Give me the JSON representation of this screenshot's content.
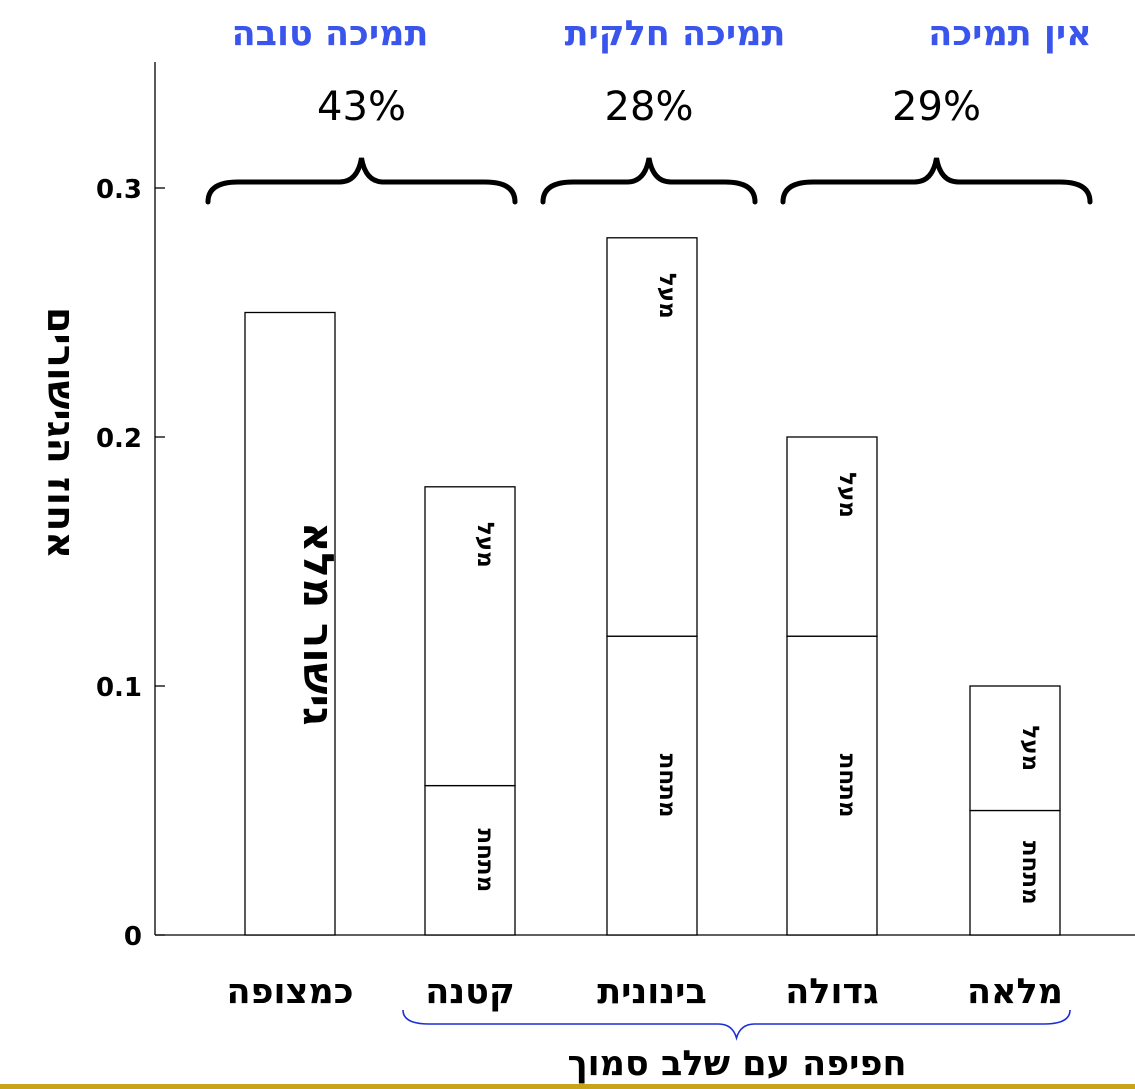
{
  "chart_data": {
    "type": "bar",
    "stacked": true,
    "ylabel": "אחוז הגישורים",
    "xlabel": "חפיפה עם שלב סמוך",
    "ylim": [
      0,
      0.35
    ],
    "yticks": [
      0,
      0.1,
      0.2,
      0.3
    ],
    "ytick_labels": [
      "0",
      "0.1",
      "0.2",
      "0.3"
    ],
    "categories": [
      "כמצופה",
      "קטנה",
      "בינונית",
      "גדולה",
      "מלאה"
    ],
    "series": [
      {
        "name": "מתחת",
        "values": [
          null,
          0.06,
          0.12,
          0.12,
          0.05
        ]
      },
      {
        "name": "מעל",
        "values": [
          null,
          0.12,
          0.16,
          0.08,
          0.05
        ]
      },
      {
        "name": "גישור מלא",
        "values": [
          0.25,
          null,
          null,
          null,
          null
        ]
      }
    ],
    "totals": [
      0.25,
      0.18,
      0.28,
      0.2,
      0.1
    ],
    "groups": [
      {
        "title": "תמיכה טובה",
        "percent": "43%",
        "categories": [
          "כמצופה",
          "קטנה"
        ]
      },
      {
        "title": "תמיכה חלקית",
        "percent": "28%",
        "categories": [
          "בינונית"
        ]
      },
      {
        "title": "אין תמיכה",
        "percent": "29%",
        "categories": [
          "גדולה",
          "מלאה"
        ]
      }
    ]
  },
  "colors": {
    "bar_fill": "#ffffff",
    "ink": "#000000",
    "group_title": "#3a55ec",
    "overlap_brace": "#1c2fd6",
    "bottom_rule": "#c8a418"
  }
}
